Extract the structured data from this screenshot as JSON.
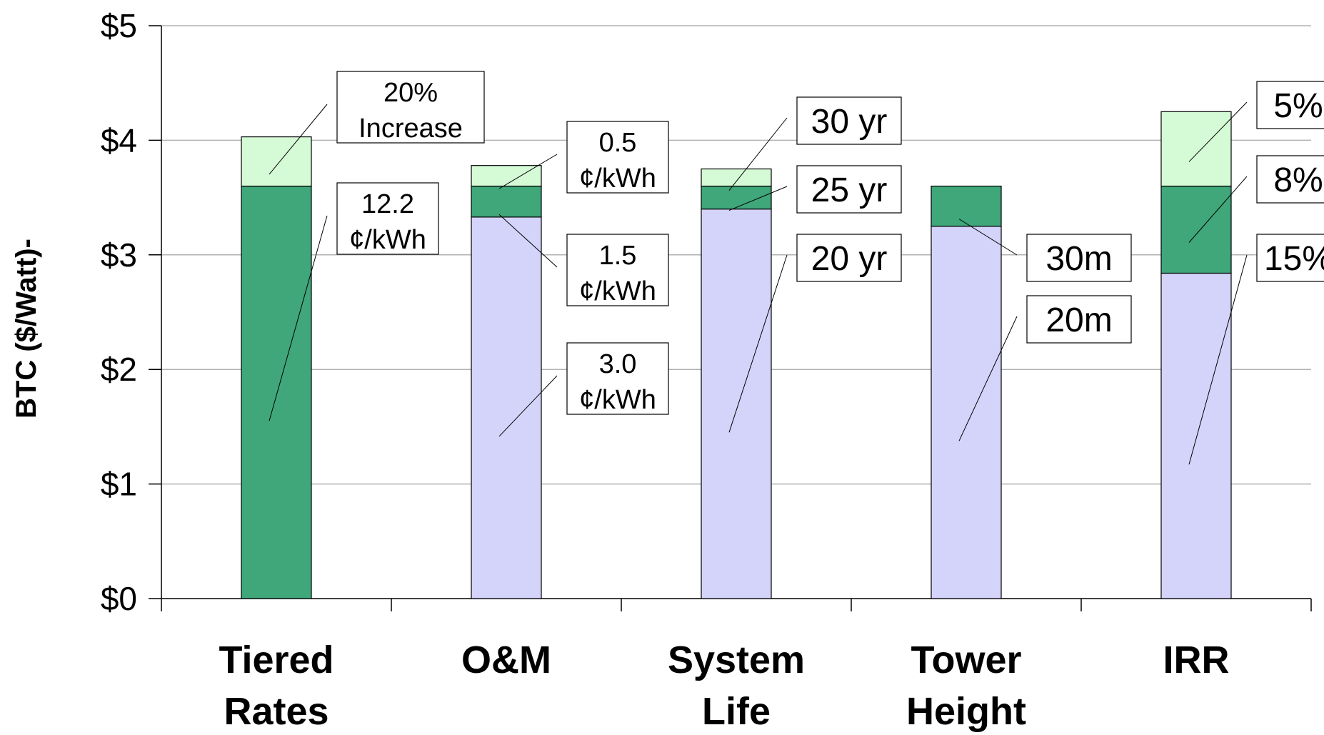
{
  "chart_data": {
    "type": "bar",
    "stacked": true,
    "ylabel": "BTC ($/Watt)-",
    "ylim": [
      0,
      5
    ],
    "y_ticks": [
      "$0",
      "$1",
      "$2",
      "$3",
      "$4",
      "$5"
    ],
    "grid": true,
    "categories": [
      [
        "Tiered",
        "Rates"
      ],
      [
        "O&M"
      ],
      [
        "System",
        "Life"
      ],
      [
        "Tower",
        "Height"
      ],
      [
        "IRR"
      ]
    ],
    "colors": {
      "lavender": "#d4d4fb",
      "dark_green": "#3fa77a",
      "light_green": "#d5fad6",
      "grid": "#b3b3b3"
    },
    "bars": [
      {
        "segments": [
          {
            "value": 3.6,
            "color": "dark_green",
            "label": [
              "12.2",
              "¢/kWh"
            ]
          },
          {
            "value": 0.43,
            "color": "light_green",
            "label": [
              "20%",
              "Increase"
            ]
          }
        ]
      },
      {
        "segments": [
          {
            "value": 3.33,
            "color": "lavender",
            "label": [
              "3.0",
              "¢/kWh"
            ]
          },
          {
            "value": 0.27,
            "color": "dark_green",
            "label": [
              "1.5",
              "¢/kWh"
            ]
          },
          {
            "value": 0.18,
            "color": "light_green",
            "label": [
              "0.5",
              "¢/kWh"
            ]
          }
        ]
      },
      {
        "segments": [
          {
            "value": 3.4,
            "color": "lavender",
            "label": [
              "20 yr"
            ]
          },
          {
            "value": 0.2,
            "color": "dark_green",
            "label": [
              "25 yr"
            ]
          },
          {
            "value": 0.15,
            "color": "light_green",
            "label": [
              "30 yr"
            ]
          }
        ]
      },
      {
        "segments": [
          {
            "value": 3.25,
            "color": "lavender",
            "label": [
              "20m"
            ]
          },
          {
            "value": 0.35,
            "color": "dark_green",
            "label": [
              "30m"
            ]
          }
        ]
      },
      {
        "segments": [
          {
            "value": 2.84,
            "color": "lavender",
            "label": [
              "15%"
            ]
          },
          {
            "value": 0.76,
            "color": "dark_green",
            "label": [
              "8%"
            ]
          },
          {
            "value": 0.65,
            "color": "light_green",
            "label": [
              "5%"
            ]
          }
        ]
      }
    ]
  }
}
